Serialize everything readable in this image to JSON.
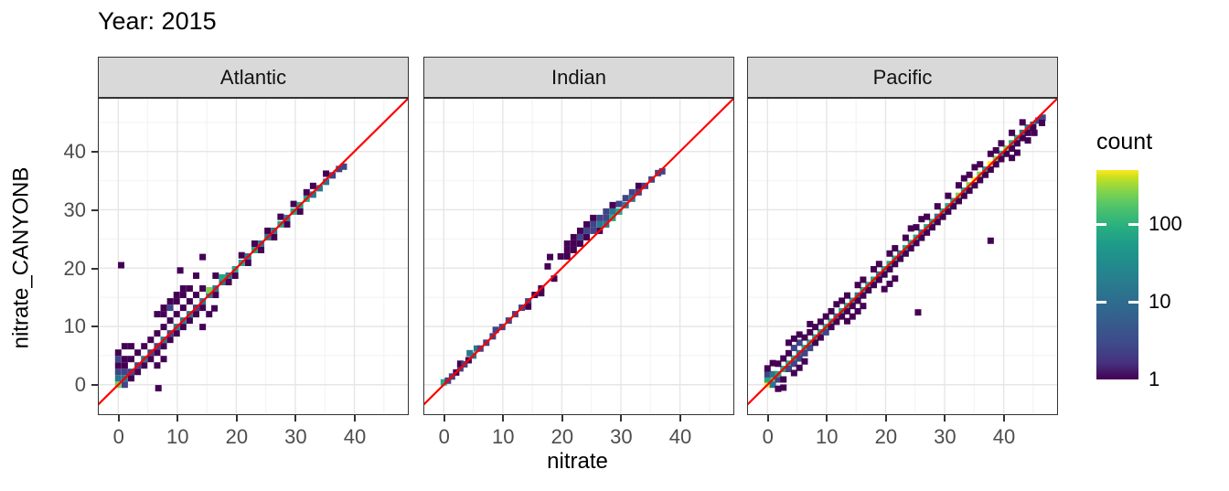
{
  "title": "Year: 2015",
  "x_axis_label": "nitrate",
  "y_axis_label": "nitrate_CANYONB",
  "legend": {
    "title": "count",
    "ticks": [
      "100",
      "10",
      "1"
    ]
  },
  "style": {
    "identity_line": "#ff0000",
    "strip_background": "#d9d9d9",
    "panel_border": "#333333",
    "grid_major": "#e6e6e6",
    "grid_minor": "#f2f2f2",
    "tick_text": "#4d4d4d",
    "viridis_levels": [
      "#440154",
      "#414487",
      "#2a788e",
      "#22a884",
      "#7ad151",
      "#fde725"
    ]
  },
  "chart_data": {
    "type": "heatmap",
    "subtype": "geom_bin2d",
    "title": "Year: 2015",
    "xlabel": "nitrate",
    "ylabel": "nitrate_CANYONB",
    "xlim": [
      -3.3,
      49.05
    ],
    "ylim": [
      -4.9,
      49.05
    ],
    "x_ticks": [
      0,
      10,
      20,
      30,
      40
    ],
    "y_ticks": [
      0,
      10,
      20,
      30,
      40
    ],
    "minor_breaks": [
      5,
      15,
      25,
      35,
      45
    ],
    "grid": true,
    "reference_line": {
      "type": "identity y=x",
      "color": "#ff0000"
    },
    "legend": {
      "title": "count",
      "scale": "log10",
      "tick_values": [
        100,
        10,
        1
      ],
      "approx_max": 550,
      "colormap": "viridis",
      "position": "right"
    },
    "count_levels_for_palette": [
      1,
      5,
      15,
      60,
      200,
      500
    ],
    "facets": [
      {
        "label": "Atlantic",
        "tiles": [
          0,
          0,
          5,
          0,
          1.1,
          3,
          1.1,
          1.1,
          3,
          1.1,
          0,
          2,
          0,
          2.2,
          2,
          1.1,
          2.2,
          2,
          2.2,
          2.2,
          2,
          3.3,
          3.3,
          2,
          4.4,
          4.4,
          3,
          5.5,
          5.5,
          2,
          6.6,
          6.6,
          2,
          7.7,
          7.7,
          3,
          8.8,
          8.8,
          2,
          9.9,
          9.9,
          3,
          11,
          11,
          3,
          12.1,
          12.1,
          3,
          13.2,
          13.2,
          2,
          14.3,
          14.3,
          3,
          15.4,
          15.4,
          3,
          15.4,
          16.2,
          5,
          16.5,
          16.5,
          3,
          17.6,
          17.6,
          3,
          17.6,
          18.4,
          4,
          18.7,
          18.7,
          3,
          19.8,
          19.8,
          4,
          20.9,
          20.9,
          4,
          22,
          22,
          3,
          23.1,
          23.1,
          4,
          24.2,
          24.2,
          3,
          25.3,
          25.3,
          3,
          26.4,
          26.4,
          3,
          27.5,
          27.5,
          4,
          28.6,
          28.6,
          3,
          29.7,
          29.7,
          4,
          30.8,
          30.8,
          4,
          31.9,
          31.9,
          4,
          33,
          32.6,
          3,
          34.1,
          33.7,
          3,
          35.2,
          34.8,
          3,
          36.3,
          35.9,
          2,
          37.4,
          37,
          2,
          38.2,
          37.4,
          2,
          0,
          3.3,
          1,
          0,
          4.4,
          2,
          1.1,
          3.3,
          1,
          1.1,
          4.4,
          1,
          0,
          5.5,
          1,
          2.2,
          1.1,
          1,
          3.3,
          2.2,
          1,
          2.2,
          4.4,
          1,
          3.3,
          5.5,
          1,
          4.4,
          3.3,
          1,
          5.5,
          4.4,
          1,
          4.4,
          6.6,
          1,
          5.5,
          7.7,
          1,
          6.6,
          5.5,
          1,
          7.7,
          6.6,
          1,
          6.6,
          8.8,
          1,
          7.7,
          9.9,
          1,
          8.8,
          7.7,
          1,
          9.9,
          8.8,
          1,
          8.8,
          11,
          1,
          9.9,
          12.1,
          1,
          11,
          9.9,
          1,
          12.1,
          11,
          1,
          11,
          13.2,
          1,
          12.1,
          14.3,
          1,
          13.2,
          12.1,
          1,
          14.3,
          13.2,
          1,
          13.2,
          15.4,
          1,
          14.3,
          16.5,
          1,
          16.5,
          15.4,
          1,
          16.5,
          18.7,
          1,
          18.7,
          17.6,
          1,
          19.8,
          18.7,
          1,
          22,
          20.9,
          1,
          24.2,
          23.1,
          1,
          26.4,
          25.3,
          1,
          28.6,
          27.5,
          1,
          30.8,
          29.7,
          1,
          25.3,
          26.4,
          1,
          23.1,
          24.2,
          1,
          20.9,
          22.2,
          1,
          27.5,
          28.8,
          1,
          29.7,
          31,
          1,
          31.9,
          33,
          1,
          33,
          34.1,
          1,
          35.2,
          36.2,
          1,
          6.6,
          12.1,
          1,
          7.7,
          13.2,
          1,
          8.8,
          14.3,
          1,
          9.9,
          15.4,
          1,
          11,
          16.5,
          1,
          8.8,
          13.2,
          2,
          7.7,
          12.1,
          1,
          9.9,
          14.3,
          1,
          12.1,
          16.5,
          1,
          11,
          15.4,
          1,
          0.5,
          20.5,
          1,
          10.5,
          19.6,
          1,
          14.3,
          21.9,
          1,
          13.2,
          18.7,
          1,
          6.8,
          -0.6,
          1,
          6.6,
          3.3,
          1,
          7.7,
          4.4,
          1,
          14.3,
          9.9,
          1,
          15.4,
          12.1,
          1,
          16.3,
          13.1,
          1,
          2.2,
          6.6,
          1,
          1.1,
          6.6,
          1
        ]
      },
      {
        "label": "Indian",
        "tiles": [
          0,
          0.4,
          4,
          0.7,
          0.7,
          2,
          1.4,
          1.4,
          2,
          2.1,
          2.1,
          1,
          2.8,
          2.8,
          2,
          2.8,
          3.6,
          1,
          3.5,
          3.5,
          2,
          4.2,
          4.2,
          1,
          4.4,
          5.4,
          3,
          5,
          5,
          3,
          5.6,
          6.2,
          3,
          6.2,
          6.2,
          2,
          7.2,
          7.2,
          2,
          8.3,
          8.3,
          2,
          8.8,
          9.4,
          2,
          9.9,
          9.9,
          2,
          11,
          11,
          2,
          12.1,
          12.1,
          2,
          13.2,
          13.2,
          2,
          14.3,
          14.3,
          2,
          15.4,
          15.4,
          1,
          16.5,
          16.5,
          1,
          14.3,
          13.4,
          1,
          16.5,
          15.7,
          1,
          18.7,
          18.2,
          1,
          17.6,
          20.3,
          1,
          18,
          21.9,
          1,
          19.8,
          22,
          1,
          20.9,
          22,
          1,
          20.9,
          23.1,
          1,
          20.9,
          24.2,
          1,
          22,
          23.1,
          1,
          22,
          24.2,
          1,
          22,
          25.3,
          1,
          23.1,
          24.2,
          1,
          23.1,
          25.3,
          2,
          23.1,
          26.4,
          1,
          24.2,
          25.3,
          1,
          24.2,
          26.4,
          2,
          24.2,
          27.5,
          1,
          25.3,
          26.4,
          2,
          25.3,
          27.5,
          2,
          25.3,
          28.6,
          1,
          26.4,
          26.4,
          1,
          26.4,
          27.5,
          3,
          26.4,
          28.6,
          2,
          27.5,
          27.5,
          3,
          27.5,
          28.6,
          2,
          27.5,
          29.7,
          2,
          28.6,
          28.6,
          4,
          28.6,
          29.7,
          3,
          28.6,
          30.8,
          1,
          29.7,
          29.7,
          4,
          29.7,
          31,
          2,
          30.8,
          30.8,
          3,
          30.8,
          32,
          2,
          31.9,
          31.9,
          3,
          31.9,
          33,
          2,
          33,
          33,
          2,
          33,
          34.1,
          1,
          34.1,
          34.1,
          2,
          35.2,
          35.2,
          2,
          36.3,
          36.3,
          2,
          37,
          36.6,
          2
        ]
      },
      {
        "label": "Pacific",
        "tiles": [
          0,
          0,
          6,
          0.9,
          0.9,
          5,
          0,
          0.9,
          4,
          0.9,
          0,
          3,
          0,
          1.8,
          2,
          1.8,
          0.9,
          2,
          0.9,
          1.8,
          3,
          1.8,
          1.8,
          4,
          1.8,
          -0.7,
          1,
          2.7,
          -0.5,
          1,
          0,
          2.8,
          1,
          0.9,
          3.7,
          1,
          2.7,
          0.9,
          1,
          2.7,
          2.7,
          4,
          3.6,
          3.6,
          4,
          4.5,
          4.5,
          4,
          5.4,
          5.4,
          3,
          6.3,
          6.3,
          4,
          7.2,
          7.2,
          4,
          8.1,
          8.1,
          4,
          9,
          9,
          4,
          9.9,
          9.9,
          4,
          10.8,
          10.8,
          4,
          11.7,
          11.7,
          3,
          12.6,
          12.6,
          4,
          13.5,
          13.5,
          4,
          14.4,
          14.4,
          4,
          15.3,
          15.3,
          3,
          16.2,
          16.2,
          4,
          17.1,
          17.1,
          4,
          18,
          18,
          4,
          18.9,
          18.9,
          3,
          19.8,
          19.8,
          4,
          20.7,
          20.7,
          4,
          21.6,
          21.6,
          4,
          22.5,
          22.5,
          3,
          23.4,
          23.4,
          4,
          24.3,
          24.3,
          4,
          25.2,
          25.2,
          4,
          26.1,
          26.1,
          3,
          27,
          27,
          4,
          27.9,
          27.9,
          4,
          28.8,
          28.8,
          3,
          29.7,
          29.7,
          4,
          30.6,
          30.6,
          4,
          31.5,
          31.5,
          4,
          32.4,
          32.4,
          5,
          33.3,
          33.3,
          4,
          34.2,
          34.2,
          5,
          35.1,
          35.1,
          6,
          36,
          36,
          5,
          36.9,
          36.9,
          4,
          37.8,
          37.8,
          6,
          38.7,
          38.7,
          5,
          39.6,
          39.6,
          4,
          40.5,
          40.5,
          5,
          41.4,
          41.4,
          4,
          42.3,
          42.3,
          4,
          43.2,
          43.2,
          3,
          44.1,
          44.1,
          3,
          45,
          44.6,
          3,
          45.9,
          45.3,
          2,
          46.6,
          45.8,
          2,
          1.8,
          3.6,
          1,
          2.7,
          4.5,
          1,
          3.6,
          2.7,
          2,
          4.5,
          3.6,
          2,
          3.6,
          5.4,
          1,
          4.5,
          6.3,
          2,
          5.4,
          4.5,
          2,
          6.3,
          5.4,
          2,
          5.4,
          7.2,
          2,
          4.5,
          7.9,
          1,
          5.4,
          8.6,
          1,
          6.3,
          8.1,
          1,
          7.2,
          6.3,
          2,
          8.1,
          7.2,
          1,
          7.2,
          9,
          1,
          8.1,
          9.9,
          1,
          9,
          8.1,
          1,
          9.9,
          9,
          2,
          9,
          10.8,
          1,
          9.9,
          11.7,
          1,
          10.8,
          9.9,
          1,
          11.7,
          10.8,
          1,
          10.8,
          12.6,
          1,
          12.6,
          11.7,
          1,
          13.5,
          12.6,
          1,
          12.6,
          14.4,
          1,
          14.4,
          13.5,
          1,
          13.5,
          15.3,
          1,
          15.3,
          14.4,
          1,
          16.2,
          15.3,
          1,
          15.3,
          17.1,
          1,
          17.1,
          16.2,
          1,
          16.2,
          18,
          1,
          18,
          17.1,
          1,
          18.9,
          18,
          1,
          18,
          19.8,
          1,
          19.8,
          18.9,
          1,
          18.9,
          20.7,
          1,
          20.7,
          19.8,
          1,
          21.6,
          20.7,
          1,
          20.7,
          22.5,
          1,
          22.5,
          21.6,
          1,
          21.6,
          23.4,
          1,
          23.4,
          22.5,
          1,
          24.3,
          23.4,
          1,
          23.4,
          25.2,
          1,
          25.2,
          24.3,
          1,
          26.1,
          25.2,
          1,
          25.2,
          27,
          1,
          27,
          26.1,
          1,
          27.9,
          27,
          1,
          27,
          28.8,
          1,
          28.8,
          27.9,
          1,
          29.7,
          28.8,
          1,
          28.8,
          30.6,
          1,
          30.6,
          29.7,
          1,
          31.5,
          30.6,
          1,
          30.6,
          32.4,
          1,
          32.4,
          31.5,
          1,
          33.3,
          32.4,
          1,
          32.4,
          34.2,
          1,
          34.2,
          33.3,
          1,
          35.1,
          34.2,
          1,
          34.2,
          36,
          1,
          36,
          35.1,
          1,
          36.9,
          36,
          1,
          36,
          37.8,
          1,
          37.8,
          36.9,
          1,
          38.7,
          37.8,
          1,
          37.8,
          39.6,
          1,
          39.6,
          38.7,
          1,
          40.5,
          39.6,
          1,
          39.6,
          41.4,
          1,
          41.4,
          40.5,
          1,
          42.3,
          41.4,
          1,
          41.4,
          43.2,
          1,
          43.2,
          42.3,
          1,
          44.1,
          43.2,
          1,
          43.2,
          45,
          1,
          45,
          44.1,
          1,
          46.5,
          44.9,
          1,
          14.4,
          11.7,
          1,
          15.3,
          12.6,
          1,
          16.2,
          13.5,
          1,
          13.5,
          10.9,
          1,
          20.7,
          17.3,
          1,
          21.6,
          18.2,
          1,
          19.8,
          16.4,
          1,
          4.5,
          2,
          1,
          5.4,
          2.9,
          1,
          6.3,
          4,
          1,
          3.6,
          7.2,
          1,
          7.2,
          10.4,
          1,
          11.7,
          13.8,
          1,
          24.3,
          26.8,
          1,
          26.1,
          28.4,
          1,
          33.3,
          35.4,
          1,
          35.1,
          37.3,
          1,
          38.7,
          40.2,
          1,
          41.4,
          38.9,
          1,
          42.3,
          39.8,
          1,
          44.1,
          41.9,
          1,
          45.2,
          43.2,
          1,
          37.8,
          24.7,
          1,
          25.5,
          12.4,
          1
        ]
      }
    ]
  }
}
